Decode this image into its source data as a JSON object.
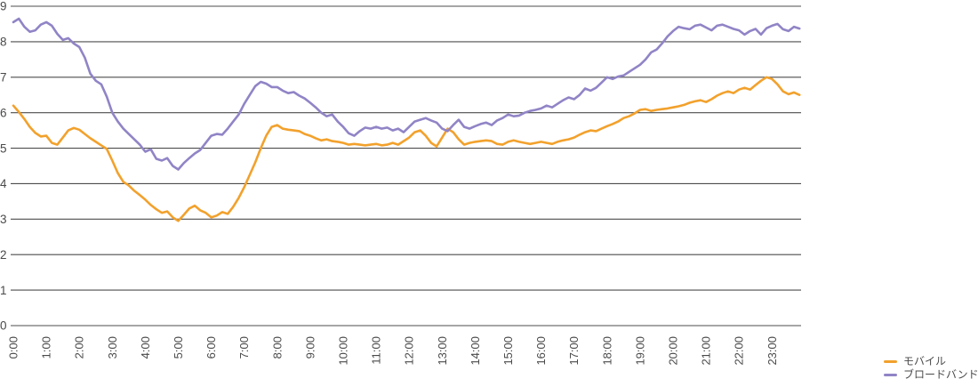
{
  "colors": {
    "background": "#FFFFFF",
    "gridline": "#4D4D4D",
    "axis_text": "#4A4A4A",
    "mobile_line": "#F2A12C",
    "broadband_line": "#9184C6"
  },
  "legend": {
    "items": [
      {
        "label": "モバイル",
        "color": "#F2A12C"
      },
      {
        "label": "ブロードバンド",
        "color": "#9184C6"
      }
    ]
  },
  "chart_data": {
    "type": "line",
    "title": "",
    "xlabel": "",
    "ylabel": "",
    "ylim": [
      0,
      9
    ],
    "y_tick_labels": [
      "0",
      "1",
      "2",
      "3",
      "4",
      "5",
      "6",
      "7",
      "8",
      "9"
    ],
    "x_tick_labels": [
      "0:00",
      "1:00",
      "2:00",
      "3:00",
      "4:00",
      "5:00",
      "6:00",
      "7:00",
      "8:00",
      "9:00",
      "10:00",
      "11:00",
      "12:00",
      "13:00",
      "14:00",
      "15:00",
      "16:00",
      "17:00",
      "18:00",
      "19:00",
      "20:00",
      "21:00",
      "22:00",
      "23:00"
    ],
    "points_per_hour": 6,
    "grid": true,
    "legend_position": "bottom-right",
    "series": [
      {
        "name": "モバイル",
        "color": "#F2A12C",
        "values": [
          6.2,
          6.02,
          5.82,
          5.6,
          5.43,
          5.33,
          5.35,
          5.15,
          5.1,
          5.3,
          5.5,
          5.57,
          5.52,
          5.4,
          5.28,
          5.18,
          5.08,
          4.98,
          4.65,
          4.3,
          4.05,
          3.95,
          3.8,
          3.68,
          3.55,
          3.4,
          3.28,
          3.18,
          3.22,
          3.05,
          2.95,
          3.12,
          3.3,
          3.38,
          3.25,
          3.18,
          3.05,
          3.1,
          3.2,
          3.15,
          3.35,
          3.6,
          3.9,
          4.25,
          4.6,
          5.0,
          5.35,
          5.6,
          5.65,
          5.55,
          5.52,
          5.5,
          5.48,
          5.4,
          5.35,
          5.28,
          5.22,
          5.25,
          5.2,
          5.18,
          5.15,
          5.1,
          5.12,
          5.1,
          5.08,
          5.1,
          5.12,
          5.08,
          5.1,
          5.15,
          5.1,
          5.2,
          5.3,
          5.45,
          5.5,
          5.35,
          5.15,
          5.05,
          5.3,
          5.55,
          5.45,
          5.25,
          5.1,
          5.15,
          5.18,
          5.2,
          5.22,
          5.2,
          5.12,
          5.1,
          5.18,
          5.22,
          5.18,
          5.15,
          5.12,
          5.15,
          5.18,
          5.15,
          5.12,
          5.18,
          5.22,
          5.25,
          5.3,
          5.38,
          5.45,
          5.5,
          5.48,
          5.55,
          5.62,
          5.68,
          5.75,
          5.85,
          5.9,
          5.98,
          6.08,
          6.1,
          6.05,
          6.08,
          6.1,
          6.12,
          6.15,
          6.18,
          6.22,
          6.28,
          6.32,
          6.35,
          6.3,
          6.38,
          6.48,
          6.55,
          6.6,
          6.55,
          6.65,
          6.7,
          6.65,
          6.78,
          6.9,
          7.0,
          6.95,
          6.8,
          6.6,
          6.52,
          6.57,
          6.5
        ]
      },
      {
        "name": "ブロードバンド",
        "color": "#9184C6",
        "values": [
          8.55,
          8.65,
          8.42,
          8.28,
          8.32,
          8.48,
          8.55,
          8.45,
          8.22,
          8.05,
          8.1,
          7.95,
          7.85,
          7.55,
          7.1,
          6.9,
          6.8,
          6.45,
          6.0,
          5.75,
          5.55,
          5.4,
          5.25,
          5.1,
          4.9,
          4.97,
          4.7,
          4.65,
          4.72,
          4.5,
          4.4,
          4.58,
          4.72,
          4.85,
          4.95,
          5.15,
          5.35,
          5.4,
          5.38,
          5.55,
          5.75,
          5.95,
          6.25,
          6.5,
          6.75,
          6.87,
          6.82,
          6.72,
          6.72,
          6.62,
          6.55,
          6.58,
          6.48,
          6.4,
          6.28,
          6.15,
          6.0,
          5.9,
          5.95,
          5.75,
          5.6,
          5.42,
          5.35,
          5.48,
          5.58,
          5.55,
          5.6,
          5.55,
          5.58,
          5.5,
          5.55,
          5.45,
          5.6,
          5.75,
          5.8,
          5.85,
          5.78,
          5.72,
          5.55,
          5.48,
          5.65,
          5.8,
          5.6,
          5.55,
          5.62,
          5.68,
          5.72,
          5.65,
          5.78,
          5.85,
          5.95,
          5.9,
          5.92,
          6.0,
          6.05,
          6.08,
          6.12,
          6.2,
          6.15,
          6.25,
          6.35,
          6.43,
          6.38,
          6.5,
          6.68,
          6.62,
          6.7,
          6.85,
          7.0,
          6.95,
          7.02,
          7.05,
          7.15,
          7.25,
          7.35,
          7.5,
          7.7,
          7.78,
          7.95,
          8.15,
          8.3,
          8.42,
          8.38,
          8.35,
          8.45,
          8.48,
          8.4,
          8.32,
          8.45,
          8.48,
          8.42,
          8.36,
          8.32,
          8.2,
          8.3,
          8.36,
          8.2,
          8.38,
          8.45,
          8.5,
          8.35,
          8.3,
          8.42,
          8.37
        ]
      }
    ]
  }
}
